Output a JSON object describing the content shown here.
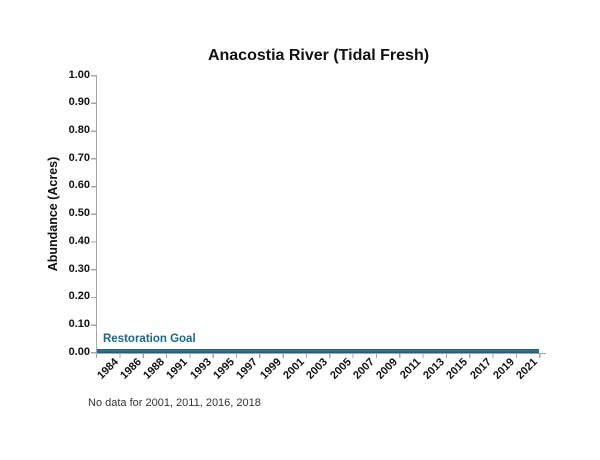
{
  "chart_data": {
    "type": "line",
    "title": "Anacostia River (Tidal Fresh)",
    "xlabel": "",
    "ylabel": "Abundance (Acres)",
    "ylim": [
      0.0,
      1.0
    ],
    "y_tick_step": 0.1,
    "y_ticks": [
      "0.00",
      "0.10",
      "0.20",
      "0.30",
      "0.40",
      "0.50",
      "0.60",
      "0.70",
      "0.80",
      "0.90",
      "1.00"
    ],
    "categories": [
      "1984",
      "1986",
      "1988",
      "1991",
      "1993",
      "1995",
      "1997",
      "1999",
      "2001",
      "2003",
      "2005",
      "2007",
      "2009",
      "2011",
      "2013",
      "2015",
      "2017",
      "2019",
      "2021"
    ],
    "series": [
      {
        "name": "Restoration Goal",
        "type": "horizontal-line",
        "value": 0.0,
        "color": "#2A7C98"
      }
    ],
    "data_series_plotted": [],
    "note": "No data for 2001, 2011, 2016, 2018",
    "grid": false,
    "legend": "none",
    "colors": {
      "goal_line": "#2A7C98",
      "goal_text": "#1B6A88",
      "axis": "#A6A6A6",
      "text": "#111111"
    }
  }
}
